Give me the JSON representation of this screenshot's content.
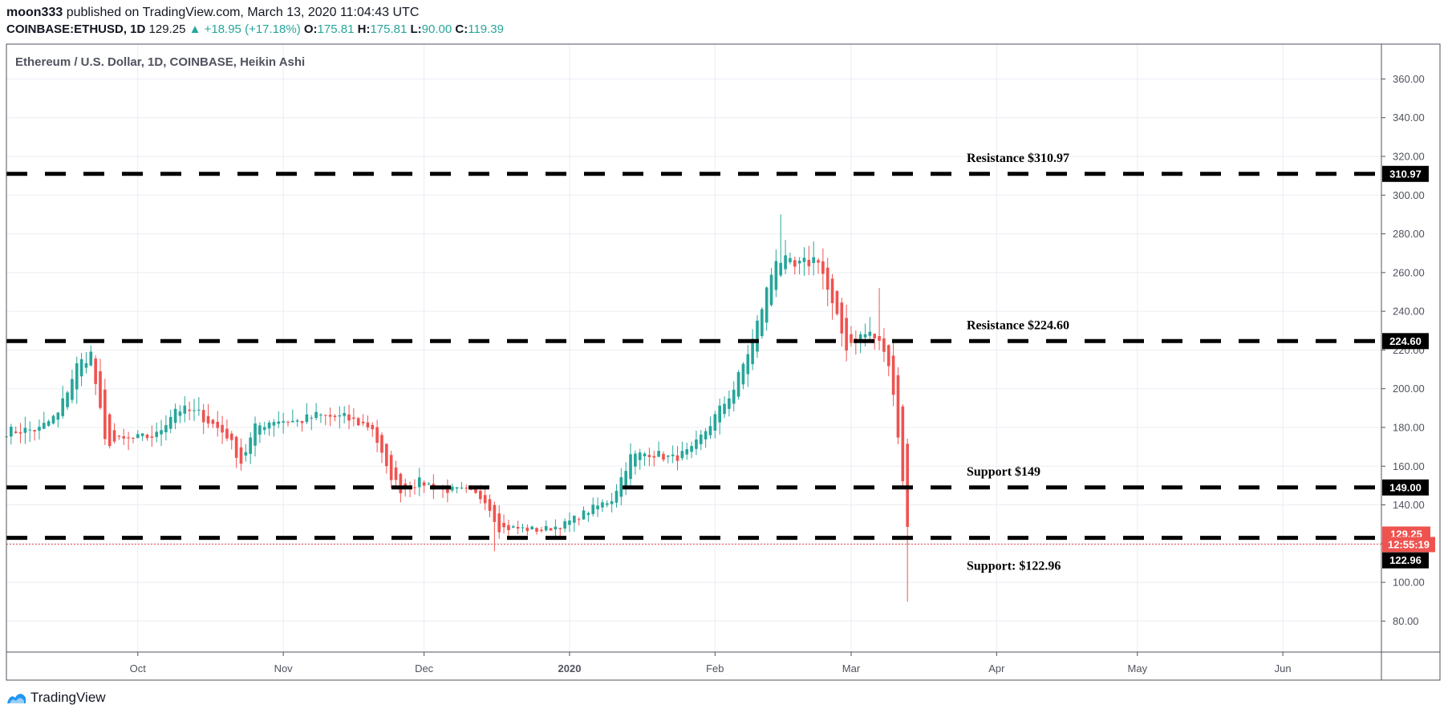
{
  "header": {
    "author": "moon333",
    "published": " published on TradingView.com, March 13, 2020 11:04:43 UTC",
    "symbol": "COINBASE:ETHUSD, 1D",
    "price": "129.25",
    "change": "▲ +18.95 (+17.18%)",
    "o_label": "O:",
    "o_value": "175.81",
    "h_label": "H:",
    "h_value": "175.81",
    "l_label": "L:",
    "l_value": "90.00",
    "c_label": "C:",
    "c_value": "119.39"
  },
  "footer": {
    "brand": "TradingView"
  },
  "colors": {
    "up": "#26a69a",
    "down": "#ef5350",
    "line": "#000000",
    "grid": "#e9edf3",
    "axis": "#50535e"
  },
  "chart_data": {
    "type": "candlestick",
    "title": "Ethereum / U.S. Dollar, 1D, COINBASE, Heikin Ashi",
    "chart_style": "Heikin Ashi",
    "y_axis_position": "right",
    "ylim": [
      64,
      378
    ],
    "y_ticks": [
      "80.00",
      "100.00",
      "120.00",
      "140.00",
      "160.00",
      "180.00",
      "200.00",
      "220.00",
      "240.00",
      "260.00",
      "280.00",
      "300.00",
      "320.00",
      "340.00",
      "360.00"
    ],
    "x_ticks": [
      {
        "label": "Oct",
        "date": "2019-10-01",
        "bold": false
      },
      {
        "label": "Nov",
        "date": "2019-11-01",
        "bold": false
      },
      {
        "label": "Dec",
        "date": "2019-12-01",
        "bold": false
      },
      {
        "label": "2020",
        "date": "2020-01-01",
        "bold": true
      },
      {
        "label": "Feb",
        "date": "2020-02-01",
        "bold": false
      },
      {
        "label": "Mar",
        "date": "2020-03-01",
        "bold": false
      },
      {
        "label": "Apr",
        "date": "2020-04-01",
        "bold": false
      },
      {
        "label": "May",
        "date": "2020-05-01",
        "bold": false
      },
      {
        "label": "Jun",
        "date": "2020-06-01",
        "bold": false
      }
    ],
    "x_range": [
      "2019-09-03",
      "2020-06-22"
    ],
    "horizontal_lines": [
      {
        "price": 310.97,
        "tag": "310.97",
        "label": "Resistance $310.97",
        "label_pos": "above"
      },
      {
        "price": 224.6,
        "tag": "224.60",
        "label": "Resistance $224.60",
        "label_pos": "above"
      },
      {
        "price": 149.0,
        "tag": "149.00",
        "label": "Support $149",
        "label_pos": "above"
      },
      {
        "price": 122.96,
        "tag": "122.96",
        "label": "Support: $122.96",
        "label_pos": "below"
      }
    ],
    "last_price": {
      "value": 129.25,
      "tag": "129.25",
      "countdown": "12:55:19"
    },
    "anchors": [
      {
        "date": "2019-09-03",
        "close": 178
      },
      {
        "date": "2019-09-10",
        "close": 179
      },
      {
        "date": "2019-09-14",
        "close": 187
      },
      {
        "date": "2019-09-18",
        "close": 212
      },
      {
        "date": "2019-09-21",
        "close": 218
      },
      {
        "date": "2019-09-24",
        "close": 172
      },
      {
        "date": "2019-09-30",
        "close": 174
      },
      {
        "date": "2019-10-05",
        "close": 176
      },
      {
        "date": "2019-10-09",
        "close": 190
      },
      {
        "date": "2019-10-14",
        "close": 187
      },
      {
        "date": "2019-10-20",
        "close": 176
      },
      {
        "date": "2019-10-23",
        "close": 162
      },
      {
        "date": "2019-10-26",
        "close": 180
      },
      {
        "date": "2019-10-30",
        "close": 184
      },
      {
        "date": "2019-11-04",
        "close": 183
      },
      {
        "date": "2019-11-08",
        "close": 186
      },
      {
        "date": "2019-11-14",
        "close": 185
      },
      {
        "date": "2019-11-20",
        "close": 180
      },
      {
        "date": "2019-11-23",
        "close": 158
      },
      {
        "date": "2019-11-26",
        "close": 148
      },
      {
        "date": "2019-11-30",
        "close": 152
      },
      {
        "date": "2019-12-05",
        "close": 148
      },
      {
        "date": "2019-12-10",
        "close": 147
      },
      {
        "date": "2019-12-14",
        "close": 143
      },
      {
        "date": "2019-12-17",
        "close": 128
      },
      {
        "date": "2019-12-20",
        "close": 128
      },
      {
        "date": "2019-12-26",
        "close": 127
      },
      {
        "date": "2019-12-31",
        "close": 130
      },
      {
        "date": "2020-01-05",
        "close": 137
      },
      {
        "date": "2020-01-10",
        "close": 143
      },
      {
        "date": "2020-01-14",
        "close": 165
      },
      {
        "date": "2020-01-18",
        "close": 167
      },
      {
        "date": "2020-01-23",
        "close": 164
      },
      {
        "date": "2020-01-27",
        "close": 168
      },
      {
        "date": "2020-01-31",
        "close": 182
      },
      {
        "date": "2020-02-05",
        "close": 200
      },
      {
        "date": "2020-02-09",
        "close": 225
      },
      {
        "date": "2020-02-14",
        "close": 268
      },
      {
        "date": "2020-02-18",
        "close": 262
      },
      {
        "date": "2020-02-23",
        "close": 268
      },
      {
        "date": "2020-02-26",
        "close": 242
      },
      {
        "date": "2020-02-29",
        "close": 222
      },
      {
        "date": "2020-03-02",
        "close": 226
      },
      {
        "date": "2020-03-05",
        "close": 229
      },
      {
        "date": "2020-03-08",
        "close": 220
      },
      {
        "date": "2020-03-10",
        "close": 200
      },
      {
        "date": "2020-03-12",
        "close": 152
      },
      {
        "date": "2020-03-13",
        "close": 130
      }
    ],
    "wick_extremes": [
      {
        "date": "2020-02-15",
        "high": 290
      },
      {
        "date": "2020-03-07",
        "high": 252
      },
      {
        "date": "2020-03-13",
        "low": 90
      },
      {
        "date": "2019-12-16",
        "low": 116
      }
    ]
  }
}
